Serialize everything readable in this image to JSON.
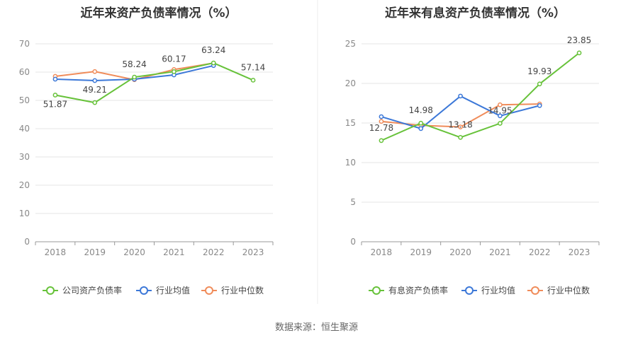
{
  "source_text": "数据来源：恒生聚源",
  "chart_data": [
    {
      "type": "line",
      "title": "近年来资产负债率情况（%）",
      "categories": [
        "2018",
        "2019",
        "2020",
        "2021",
        "2022",
        "2023"
      ],
      "ylim": [
        0,
        70
      ],
      "yticks": [
        0,
        10,
        20,
        30,
        40,
        50,
        60,
        70
      ],
      "grid": true,
      "legend_position": "bottom",
      "series": [
        {
          "name": "公司资产负债率",
          "color": "#67c23a",
          "labeled": true,
          "values": [
            51.87,
            49.21,
            58.24,
            60.17,
            63.24,
            57.14
          ]
        },
        {
          "name": "行业均值",
          "color": "#3c78d8",
          "values": [
            57.5,
            57.0,
            57.5,
            59.0,
            62.3,
            null
          ]
        },
        {
          "name": "行业中位数",
          "color": "#f08c5a",
          "values": [
            58.5,
            60.2,
            57.3,
            60.9,
            63.2,
            null
          ]
        }
      ]
    },
    {
      "type": "line",
      "title": "近年来有息资产负债率情况（%）",
      "categories": [
        "2018",
        "2019",
        "2020",
        "2021",
        "2022",
        "2023"
      ],
      "ylim": [
        0,
        25
      ],
      "yticks": [
        0,
        5,
        10,
        15,
        20,
        25
      ],
      "grid": true,
      "legend_position": "bottom",
      "series": [
        {
          "name": "有息资产负债率",
          "color": "#67c23a",
          "labeled": true,
          "values": [
            12.78,
            14.98,
            13.18,
            14.95,
            19.93,
            23.85
          ]
        },
        {
          "name": "行业均值",
          "color": "#3c78d8",
          "values": [
            15.8,
            14.3,
            18.4,
            15.9,
            17.2,
            null
          ]
        },
        {
          "name": "行业中位数",
          "color": "#f08c5a",
          "values": [
            15.2,
            14.7,
            14.5,
            17.3,
            17.4,
            null
          ]
        }
      ]
    }
  ]
}
